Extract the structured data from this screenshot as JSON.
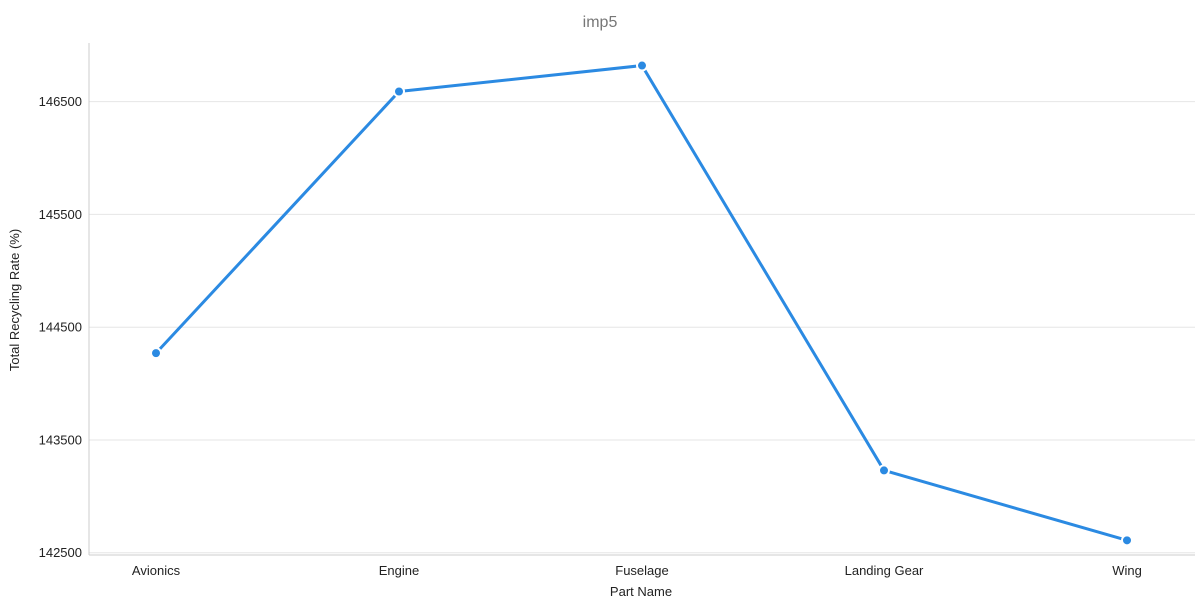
{
  "chart_data": {
    "type": "line",
    "title": "imp5",
    "xlabel": "Part Name",
    "ylabel": "Total Recycling Rate (%)",
    "categories": [
      "Avionics",
      "Engine",
      "Fuselage",
      "Landing Gear",
      "Wing"
    ],
    "series": [
      {
        "values": [
          144270,
          146590,
          146820,
          143230,
          142610
        ]
      }
    ],
    "ylim": [
      142480,
      147020
    ],
    "yticks": [
      142500,
      143500,
      144500,
      145500,
      146500
    ],
    "grid": true,
    "legend": "none",
    "colors": {
      "line": "#2b8ae2",
      "marker_fill": "#2b8ae2",
      "marker_ring": "#ffffff"
    }
  }
}
